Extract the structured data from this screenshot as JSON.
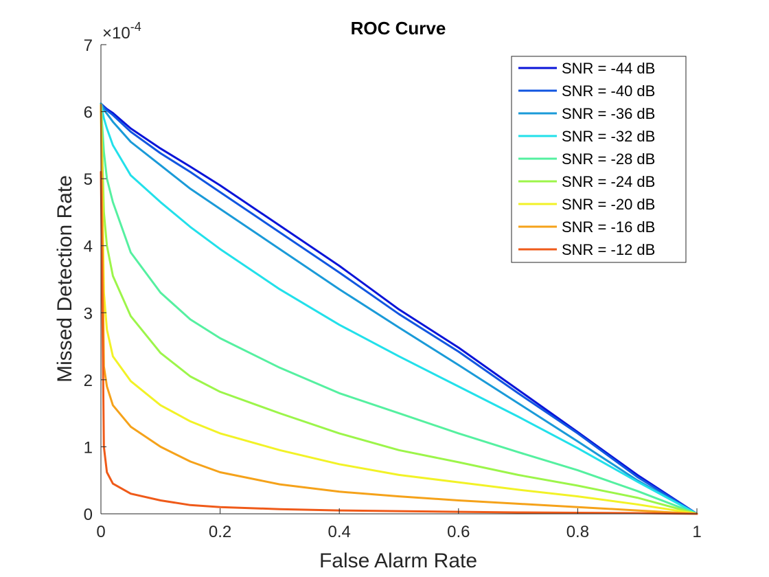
{
  "chart_data": {
    "type": "line",
    "title": "ROC Curve",
    "xlabel": "False Alarm Rate",
    "ylabel": "Missed Detection Rate",
    "xlim": [
      0,
      1
    ],
    "ylim": [
      0,
      7
    ],
    "y_multiplier": "×10",
    "y_exponent": "-4",
    "xticks": [
      "0",
      "0.2",
      "0.4",
      "0.6",
      "0.8",
      "1"
    ],
    "yticks": [
      "0",
      "1",
      "2",
      "3",
      "4",
      "5",
      "6",
      "7"
    ],
    "grid": false,
    "legend_position": "top-right",
    "x": [
      0,
      0.005,
      0.01,
      0.02,
      0.05,
      0.1,
      0.15,
      0.2,
      0.3,
      0.4,
      0.5,
      0.6,
      0.7,
      0.8,
      0.9,
      1
    ],
    "series": [
      {
        "name": "SNR = -44 dB",
        "color": "#0a14d8",
        "values": [
          6.12,
          6.08,
          6.04,
          5.98,
          5.75,
          5.45,
          5.18,
          4.9,
          4.3,
          3.7,
          3.05,
          2.48,
          1.85,
          1.22,
          0.58,
          0.0
        ]
      },
      {
        "name": "SNR = -40 dB",
        "color": "#1156e0",
        "values": [
          6.12,
          6.07,
          6.02,
          5.95,
          5.7,
          5.38,
          5.1,
          4.8,
          4.2,
          3.6,
          2.98,
          2.42,
          1.8,
          1.2,
          0.55,
          0.0
        ]
      },
      {
        "name": "SNR = -36 dB",
        "color": "#1a9ad8",
        "values": [
          6.12,
          6.03,
          5.97,
          5.85,
          5.55,
          5.2,
          4.85,
          4.55,
          3.95,
          3.35,
          2.78,
          2.22,
          1.65,
          1.08,
          0.5,
          0.0
        ]
      },
      {
        "name": "SNR = -32 dB",
        "color": "#22e0ea",
        "values": [
          6.12,
          5.9,
          5.75,
          5.5,
          5.05,
          4.65,
          4.28,
          3.95,
          3.35,
          2.82,
          2.35,
          1.9,
          1.45,
          0.98,
          0.48,
          0.0
        ]
      },
      {
        "name": "SNR = -28 dB",
        "color": "#55f0a0",
        "values": [
          6.1,
          5.4,
          5.0,
          4.65,
          3.9,
          3.3,
          2.9,
          2.62,
          2.18,
          1.8,
          1.5,
          1.2,
          0.92,
          0.65,
          0.34,
          0.0
        ]
      },
      {
        "name": "SNR = -24 dB",
        "color": "#9cf54a",
        "values": [
          6.1,
          4.5,
          4.0,
          3.55,
          2.95,
          2.4,
          2.05,
          1.82,
          1.5,
          1.2,
          0.95,
          0.77,
          0.58,
          0.42,
          0.24,
          0.0
        ]
      },
      {
        "name": "SNR = -20 dB",
        "color": "#f2f227",
        "values": [
          6.1,
          3.3,
          2.75,
          2.35,
          1.98,
          1.62,
          1.38,
          1.2,
          0.95,
          0.74,
          0.58,
          0.47,
          0.36,
          0.26,
          0.14,
          0.0
        ]
      },
      {
        "name": "SNR = -16 dB",
        "color": "#f5a21a",
        "values": [
          6.1,
          2.2,
          1.9,
          1.62,
          1.3,
          1.0,
          0.78,
          0.62,
          0.44,
          0.33,
          0.26,
          0.2,
          0.15,
          0.1,
          0.05,
          0.0
        ]
      },
      {
        "name": "SNR = -12 dB",
        "color": "#ef5a19",
        "values": [
          5.1,
          1.0,
          0.62,
          0.45,
          0.3,
          0.2,
          0.13,
          0.1,
          0.07,
          0.05,
          0.04,
          0.03,
          0.02,
          0.015,
          0.01,
          0.0
        ]
      }
    ]
  }
}
